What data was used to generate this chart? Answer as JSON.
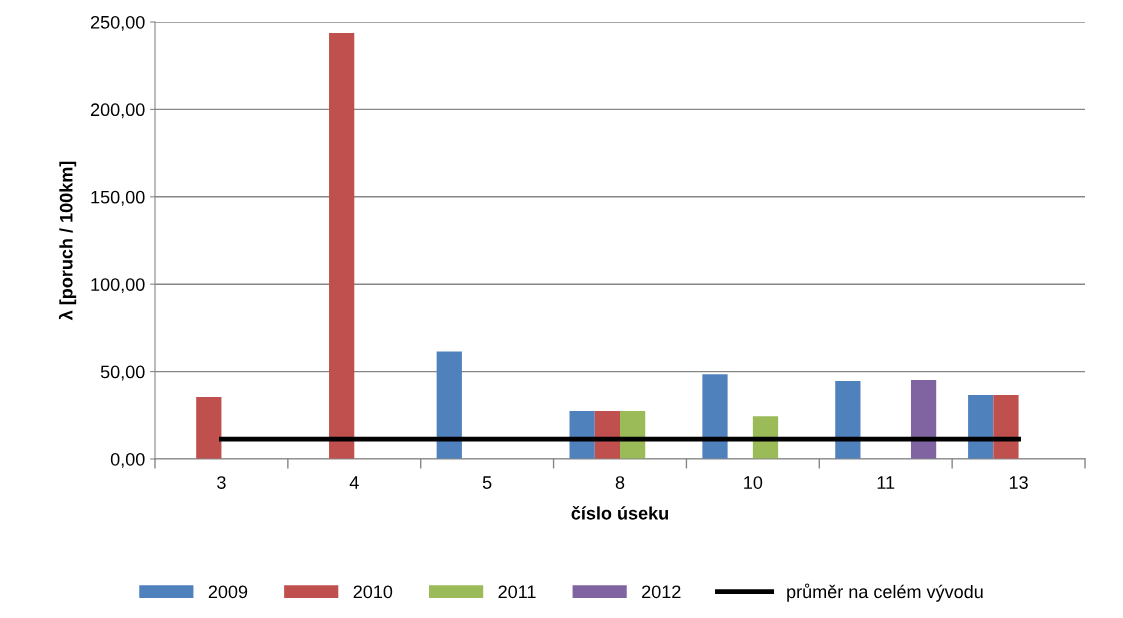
{
  "chart_data": {
    "type": "bar",
    "xlabel": "číslo úseku",
    "ylabel": "λ [poruch / 100km]",
    "categories": [
      "3",
      "4",
      "5",
      "8",
      "10",
      "11",
      "13"
    ],
    "series": [
      {
        "name": "2009",
        "color": "#4f81bd",
        "values": [
          null,
          null,
          61.5,
          27.5,
          48.5,
          44.6,
          36.6
        ]
      },
      {
        "name": "2010",
        "color": "#c0504d",
        "values": [
          35.5,
          243.7,
          null,
          27.5,
          null,
          null,
          36.6
        ]
      },
      {
        "name": "2011",
        "color": "#9bbb59",
        "values": [
          null,
          null,
          null,
          27.5,
          24.5,
          null,
          null
        ]
      },
      {
        "name": "2012",
        "color": "#8064a2",
        "values": [
          null,
          null,
          null,
          null,
          null,
          45.2,
          null
        ]
      },
      {
        "name": "průměr na celém vývodu",
        "type": "line",
        "color": "#000000",
        "values": [
          11.4,
          11.4,
          11.4,
          11.4,
          11.4,
          11.4,
          11.4
        ]
      }
    ],
    "ylim": [
      0,
      250
    ],
    "yticks": [
      {
        "value": 0,
        "label": "0,00"
      },
      {
        "value": 50,
        "label": "50,00"
      },
      {
        "value": 100,
        "label": "100,00"
      },
      {
        "value": 150,
        "label": "150,00"
      },
      {
        "value": 200,
        "label": "200,00"
      },
      {
        "value": 250,
        "label": "250,00"
      }
    ],
    "grid": "y",
    "legend": "bottom",
    "marker": "none",
    "line_style": "solid"
  }
}
